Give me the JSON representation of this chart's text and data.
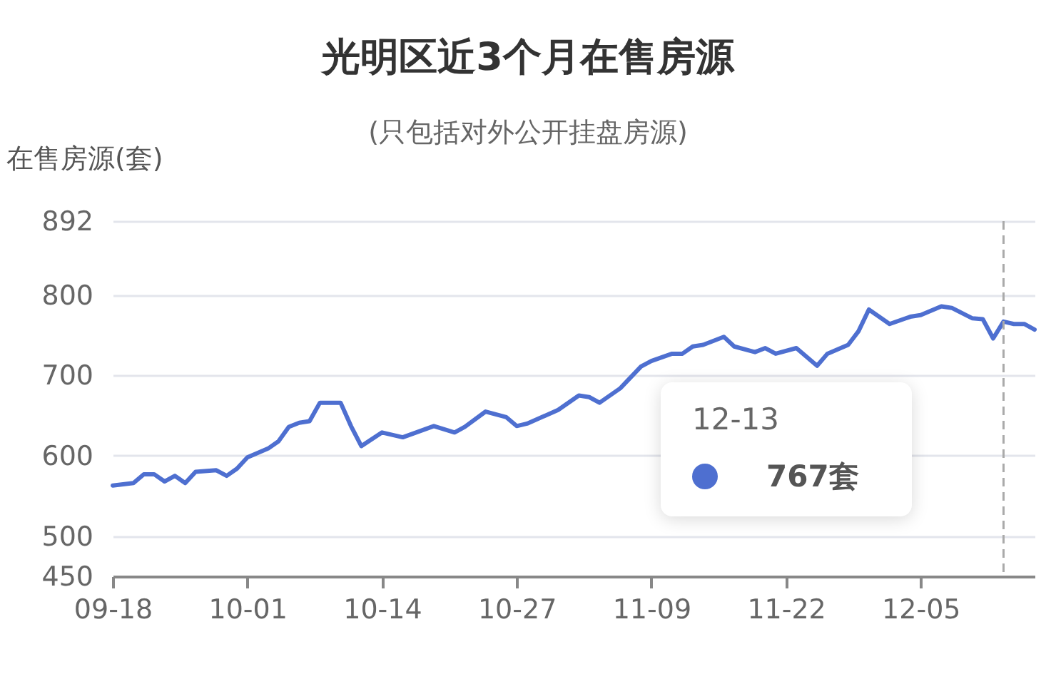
{
  "chart_data": {
    "type": "line",
    "title": "光明区近3个月在售房源",
    "subtitle": "(只包括对外公开挂盘房源)",
    "ylabel": "在售房源(套)",
    "x": [
      "--09-18",
      "--09-20",
      "--09-21",
      "--09-22",
      "--09-23",
      "--09-24",
      "--09-25",
      "--09-26",
      "--09-28",
      "--09-29",
      "--09-30",
      "--10-01",
      "--10-03",
      "--10-04",
      "--10-05",
      "--10-06",
      "--10-07",
      "--10-08",
      "--10-10",
      "--10-11",
      "--10-12",
      "--10-14",
      "--10-16",
      "--10-19",
      "--10-21",
      "--10-22",
      "--10-24",
      "--10-26",
      "--10-27",
      "--10-28",
      "--10-31",
      "--11-02",
      "--11-03",
      "--11-04",
      "--11-06",
      "--11-08",
      "--11-09",
      "--11-11",
      "--11-12",
      "--11-13",
      "--11-14",
      "--11-16",
      "--11-17",
      "--11-19",
      "--11-20",
      "--11-21",
      "--11-23",
      "--11-25",
      "--11-26",
      "--11-28",
      "--11-29",
      "--11-30",
      "--12-02",
      "--12-04",
      "--12-05",
      "--12-07",
      "--12-08",
      "--12-10",
      "--12-11",
      "--12-12",
      "--12-13",
      "--12-14",
      "--12-15",
      "--12-16"
    ],
    "series": [
      {
        "color": "#4e6fd0",
        "values": [
          563,
          566,
          577,
          577,
          568,
          575,
          566,
          580,
          582,
          575,
          584,
          598,
          609,
          618,
          636,
          641,
          643,
          666,
          666,
          637,
          612,
          629,
          623,
          637,
          629,
          636,
          655,
          648,
          637,
          640,
          657,
          675,
          673,
          666,
          684,
          711,
          718,
          727,
          727,
          736,
          738,
          748,
          736,
          729,
          734,
          727,
          734,
          712,
          727,
          738,
          755,
          782,
          764,
          773,
          775,
          786,
          784,
          771,
          770,
          746,
          767,
          764,
          764,
          757
        ]
      }
    ],
    "xlim": [
      "--09-18",
      "--12-16"
    ],
    "xticks": [
      {
        "value": "--09-18",
        "label": "09-18"
      },
      {
        "value": "--10-01",
        "label": "10-01"
      },
      {
        "value": "--10-14",
        "label": "10-14"
      },
      {
        "value": "--10-27",
        "label": "10-27"
      },
      {
        "value": "--11-09",
        "label": "11-09"
      },
      {
        "value": "--11-22",
        "label": "11-22"
      },
      {
        "value": "--12-05",
        "label": "12-05"
      }
    ],
    "ylim": [
      450,
      892
    ],
    "yticks": [
      450,
      500,
      600,
      700,
      800,
      892
    ],
    "grid": "y",
    "marker": "none",
    "line_style": "solid",
    "ref_lines": [
      {
        "axis": "x",
        "value": "--12-13",
        "color": "#aaaaaa",
        "line_style": "dashed"
      }
    ],
    "annotations": [
      "12-13",
      "767套"
    ]
  }
}
